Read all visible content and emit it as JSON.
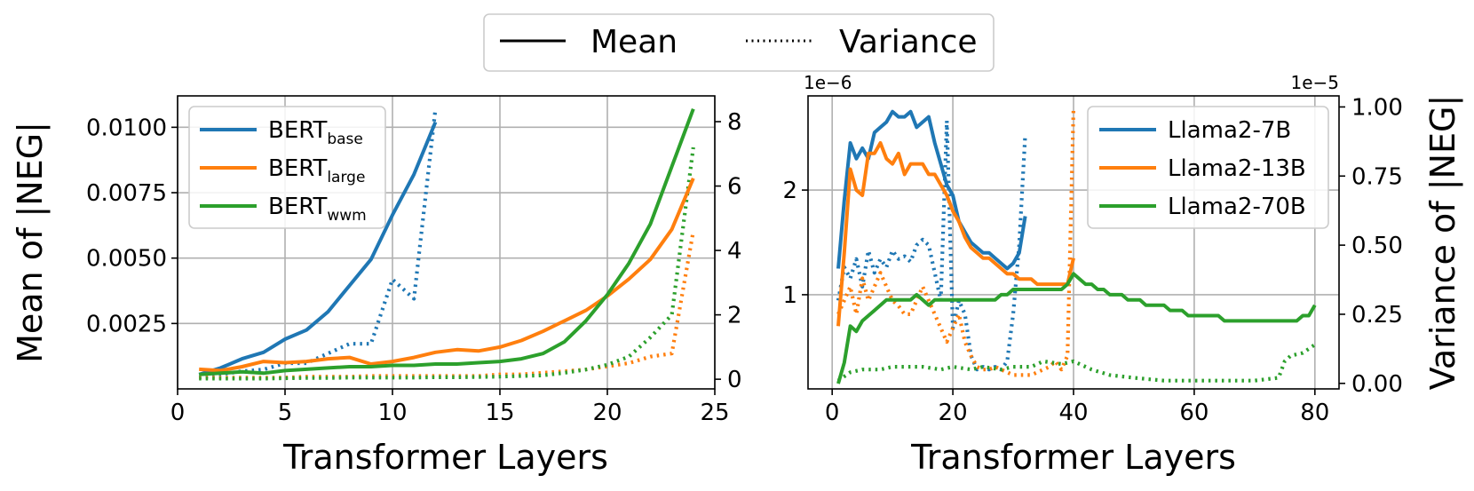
{
  "legend_top": {
    "mean_label": "Mean",
    "variance_label": "Variance"
  },
  "colors": {
    "blue": "#1f77b4",
    "orange": "#ff7f0e",
    "green": "#2ca02c"
  },
  "chart_data": [
    {
      "type": "line",
      "xlabel": "Transformer Layers",
      "ylabel_left": "Mean of |NEG|",
      "ylabel_right": "",
      "xlim": [
        0,
        25
      ],
      "ylim_left": [
        0,
        0.0112
      ],
      "ylim_right": [
        -0.3,
        8.8
      ],
      "x_ticks": [
        "0",
        "5",
        "10",
        "15",
        "20",
        "25"
      ],
      "x_tick_values": [
        0,
        5,
        10,
        15,
        20,
        25
      ],
      "y_left_ticks": [
        "0.0025",
        "0.0050",
        "0.0075",
        "0.0100"
      ],
      "y_left_tick_values": [
        0.0025,
        0.005,
        0.0075,
        0.01
      ],
      "y_right_ticks": [
        "0",
        "2",
        "4",
        "6",
        "8"
      ],
      "y_right_tick_values": [
        0,
        2,
        4,
        6,
        8
      ],
      "right_offset_text": "",
      "left_offset_text": "",
      "legend": {
        "placement": "top-left",
        "entries": [
          {
            "base": "BERT",
            "sub": "base",
            "color": "#1f77b4"
          },
          {
            "base": "BERT",
            "sub": "large",
            "color": "#ff7f0e"
          },
          {
            "base": "BERT",
            "sub": "wwm",
            "color": "#2ca02c"
          }
        ]
      },
      "series": [
        {
          "name": "BERT_base mean",
          "axis": "left",
          "style": "solid",
          "color": "#1f77b4",
          "x": [
            1,
            2,
            3,
            4,
            5,
            6,
            7,
            8,
            9,
            10,
            11,
            12
          ],
          "y": [
            0.00055,
            0.0008,
            0.00115,
            0.0014,
            0.0019,
            0.00225,
            0.00295,
            0.00395,
            0.00495,
            0.00665,
            0.0082,
            0.0102
          ]
        },
        {
          "name": "BERT_base variance",
          "axis": "right",
          "style": "dotted",
          "color": "#1f77b4",
          "x": [
            1,
            2,
            3,
            4,
            5,
            6,
            7,
            8,
            9,
            10,
            11,
            12
          ],
          "y": [
            0.05,
            0.15,
            0.25,
            0.3,
            0.5,
            0.5,
            0.8,
            1.1,
            1.1,
            3.1,
            2.5,
            8.4
          ]
        },
        {
          "name": "BERT_large mean",
          "axis": "left",
          "style": "solid",
          "color": "#ff7f0e",
          "x": [
            1,
            2,
            3,
            4,
            5,
            6,
            7,
            8,
            9,
            10,
            11,
            12,
            13,
            14,
            15,
            16,
            17,
            18,
            19,
            20,
            21,
            22,
            23,
            24
          ],
          "y": [
            0.00075,
            0.0007,
            0.00085,
            0.00105,
            0.001,
            0.00105,
            0.00115,
            0.0012,
            0.00095,
            0.00105,
            0.0012,
            0.0014,
            0.0015,
            0.00145,
            0.0016,
            0.00185,
            0.0022,
            0.0026,
            0.003,
            0.00355,
            0.0042,
            0.00495,
            0.0061,
            0.00805
          ]
        },
        {
          "name": "BERT_large variance",
          "axis": "right",
          "style": "dotted",
          "color": "#ff7f0e",
          "x": [
            1,
            2,
            3,
            4,
            5,
            6,
            7,
            8,
            9,
            10,
            11,
            12,
            13,
            14,
            15,
            16,
            17,
            18,
            19,
            20,
            21,
            22,
            23,
            24
          ],
          "y": [
            0.05,
            0.05,
            0.05,
            0.05,
            0.05,
            0.08,
            0.08,
            0.08,
            0.1,
            0.1,
            0.1,
            0.1,
            0.1,
            0.1,
            0.15,
            0.15,
            0.2,
            0.25,
            0.3,
            0.4,
            0.5,
            0.7,
            0.8,
            4.6
          ]
        },
        {
          "name": "BERT_wwm mean",
          "axis": "left",
          "style": "solid",
          "color": "#2ca02c",
          "x": [
            1,
            2,
            3,
            4,
            5,
            6,
            7,
            8,
            9,
            10,
            11,
            12,
            13,
            14,
            15,
            16,
            17,
            18,
            19,
            20,
            21,
            22,
            23,
            24
          ],
          "y": [
            0.00055,
            0.0006,
            0.00065,
            0.0006,
            0.0007,
            0.00075,
            0.0008,
            0.00085,
            0.00085,
            0.0009,
            0.0009,
            0.00095,
            0.00095,
            0.001,
            0.00105,
            0.00115,
            0.00135,
            0.0018,
            0.0026,
            0.0036,
            0.0048,
            0.0063,
            0.0085,
            0.0107
          ]
        },
        {
          "name": "BERT_wwm variance",
          "axis": "right",
          "style": "dotted",
          "color": "#2ca02c",
          "x": [
            1,
            2,
            3,
            4,
            5,
            6,
            7,
            8,
            9,
            10,
            11,
            12,
            13,
            14,
            15,
            16,
            17,
            18,
            19,
            20,
            21,
            22,
            23,
            24
          ],
          "y": [
            0.02,
            0.02,
            0.02,
            0.02,
            0.03,
            0.04,
            0.04,
            0.05,
            0.05,
            0.05,
            0.05,
            0.06,
            0.06,
            0.07,
            0.08,
            0.1,
            0.12,
            0.2,
            0.3,
            0.45,
            0.7,
            1.3,
            2.0,
            7.2
          ]
        }
      ]
    },
    {
      "type": "line",
      "xlabel": "Transformer Layers",
      "ylabel_left": "",
      "ylabel_right": "Variance of |NEG|",
      "xlim": [
        -4,
        84
      ],
      "ylim_left": [
        0.1,
        2.9
      ],
      "ylim_right": [
        -0.02,
        1.04
      ],
      "x_ticks": [
        "0",
        "20",
        "40",
        "60",
        "80"
      ],
      "x_tick_values": [
        0,
        20,
        40,
        60,
        80
      ],
      "y_left_ticks": [
        "1",
        "2"
      ],
      "y_left_tick_values": [
        1,
        2
      ],
      "y_right_ticks": [
        "0.00",
        "0.25",
        "0.50",
        "0.75",
        "1.00"
      ],
      "y_right_tick_values": [
        0,
        0.25,
        0.5,
        0.75,
        1.0
      ],
      "left_offset_text": "1e−6",
      "right_offset_text": "1e−5",
      "legend": {
        "placement": "top-right",
        "entries": [
          {
            "base": "Llama2-7B",
            "sub": "",
            "color": "#1f77b4"
          },
          {
            "base": "Llama2-13B",
            "sub": "",
            "color": "#ff7f0e"
          },
          {
            "base": "Llama2-70B",
            "sub": "",
            "color": "#2ca02c"
          }
        ]
      },
      "series": [
        {
          "name": "Llama2-7B mean",
          "axis": "left",
          "style": "solid",
          "color": "#1f77b4",
          "x": [
            1,
            2,
            3,
            4,
            5,
            6,
            7,
            8,
            9,
            10,
            11,
            12,
            13,
            14,
            15,
            16,
            17,
            18,
            19,
            20,
            21,
            22,
            23,
            24,
            25,
            26,
            27,
            28,
            29,
            30,
            31,
            32
          ],
          "y": [
            1.25,
            1.9,
            2.45,
            2.3,
            2.4,
            2.3,
            2.55,
            2.6,
            2.65,
            2.75,
            2.7,
            2.7,
            2.75,
            2.6,
            2.65,
            2.7,
            2.45,
            2.25,
            2.05,
            1.95,
            1.7,
            1.6,
            1.5,
            1.45,
            1.4,
            1.4,
            1.35,
            1.3,
            1.25,
            1.3,
            1.4,
            1.75
          ]
        },
        {
          "name": "Llama2-7B variance",
          "axis": "right",
          "style": "dotted",
          "color": "#1f77b4",
          "x": [
            1,
            2,
            3,
            4,
            5,
            6,
            7,
            8,
            9,
            10,
            11,
            12,
            13,
            14,
            15,
            16,
            17,
            18,
            19,
            20,
            21,
            22,
            23,
            24,
            25,
            26,
            27,
            28,
            29,
            30,
            31,
            32
          ],
          "y": [
            0.3,
            0.42,
            0.38,
            0.45,
            0.35,
            0.48,
            0.4,
            0.45,
            0.42,
            0.48,
            0.45,
            0.46,
            0.44,
            0.5,
            0.52,
            0.5,
            0.4,
            0.3,
            0.95,
            0.2,
            0.3,
            0.25,
            0.1,
            0.05,
            0.06,
            0.05,
            0.06,
            0.05,
            0.08,
            0.25,
            0.5,
            0.9
          ]
        },
        {
          "name": "Llama2-13B mean",
          "axis": "left",
          "style": "solid",
          "color": "#ff7f0e",
          "x": [
            1,
            2,
            3,
            4,
            5,
            6,
            7,
            8,
            9,
            10,
            11,
            12,
            13,
            14,
            15,
            16,
            17,
            18,
            19,
            20,
            21,
            22,
            23,
            24,
            25,
            26,
            27,
            28,
            29,
            30,
            31,
            32,
            33,
            34,
            35,
            36,
            37,
            38,
            39,
            40
          ],
          "y": [
            0.7,
            1.4,
            2.2,
            2.0,
            1.95,
            2.35,
            2.35,
            2.45,
            2.3,
            2.25,
            2.35,
            2.15,
            2.25,
            2.25,
            2.25,
            2.15,
            2.15,
            2.05,
            1.95,
            1.8,
            1.7,
            1.55,
            1.45,
            1.4,
            1.35,
            1.35,
            1.3,
            1.25,
            1.2,
            1.2,
            1.15,
            1.15,
            1.15,
            1.1,
            1.1,
            1.1,
            1.1,
            1.1,
            1.1,
            1.35
          ]
        },
        {
          "name": "Llama2-13B variance",
          "axis": "right",
          "style": "dotted",
          "color": "#ff7f0e",
          "x": [
            1,
            2,
            3,
            4,
            5,
            6,
            7,
            8,
            9,
            10,
            11,
            12,
            13,
            14,
            15,
            16,
            17,
            18,
            19,
            20,
            21,
            22,
            23,
            24,
            25,
            26,
            27,
            28,
            29,
            30,
            31,
            32,
            33,
            34,
            35,
            36,
            37,
            38,
            39,
            40
          ],
          "y": [
            0.25,
            0.3,
            0.35,
            0.25,
            0.38,
            0.3,
            0.35,
            0.4,
            0.35,
            0.3,
            0.28,
            0.25,
            0.25,
            0.3,
            0.35,
            0.3,
            0.25,
            0.2,
            0.15,
            0.2,
            0.25,
            0.15,
            0.1,
            0.06,
            0.05,
            0.05,
            0.06,
            0.05,
            0.04,
            0.03,
            0.03,
            0.03,
            0.03,
            0.04,
            0.05,
            0.06,
            0.08,
            0.05,
            0.1,
            1.0
          ]
        },
        {
          "name": "Llama2-70B mean",
          "axis": "left",
          "style": "solid",
          "color": "#2ca02c",
          "x": [
            1,
            2,
            3,
            4,
            5,
            6,
            7,
            8,
            9,
            10,
            11,
            12,
            13,
            14,
            15,
            16,
            17,
            18,
            19,
            20,
            21,
            22,
            23,
            24,
            25,
            26,
            27,
            28,
            29,
            30,
            31,
            32,
            33,
            34,
            35,
            36,
            37,
            38,
            39,
            40,
            41,
            42,
            43,
            44,
            45,
            46,
            47,
            48,
            49,
            50,
            51,
            52,
            53,
            54,
            55,
            56,
            57,
            58,
            59,
            60,
            61,
            62,
            63,
            64,
            65,
            66,
            67,
            68,
            69,
            70,
            71,
            72,
            73,
            74,
            75,
            76,
            77,
            78,
            79,
            80
          ],
          "y": [
            0.15,
            0.35,
            0.7,
            0.65,
            0.75,
            0.8,
            0.85,
            0.9,
            0.95,
            0.95,
            0.95,
            0.95,
            0.95,
            1.0,
            0.95,
            0.9,
            0.95,
            0.95,
            0.95,
            0.95,
            0.95,
            0.95,
            0.95,
            0.95,
            0.95,
            0.95,
            0.95,
            1.0,
            1.0,
            1.05,
            1.05,
            1.05,
            1.05,
            1.05,
            1.05,
            1.05,
            1.05,
            1.05,
            1.1,
            1.2,
            1.15,
            1.1,
            1.1,
            1.05,
            1.05,
            1.0,
            1.0,
            1.0,
            0.95,
            0.95,
            0.95,
            0.9,
            0.9,
            0.9,
            0.9,
            0.85,
            0.85,
            0.85,
            0.8,
            0.8,
            0.8,
            0.8,
            0.8,
            0.8,
            0.75,
            0.75,
            0.75,
            0.75,
            0.75,
            0.75,
            0.75,
            0.75,
            0.75,
            0.75,
            0.75,
            0.75,
            0.75,
            0.8,
            0.8,
            0.9
          ]
        },
        {
          "name": "Llama2-70B variance",
          "axis": "right",
          "style": "dotted",
          "color": "#2ca02c",
          "x": [
            1,
            3,
            5,
            8,
            10,
            13,
            15,
            18,
            20,
            23,
            25,
            28,
            30,
            33,
            35,
            38,
            40,
            43,
            46,
            50,
            55,
            60,
            65,
            70,
            74,
            75,
            76,
            78,
            80
          ],
          "y": [
            0.01,
            0.04,
            0.05,
            0.05,
            0.06,
            0.06,
            0.06,
            0.05,
            0.06,
            0.05,
            0.06,
            0.05,
            0.06,
            0.06,
            0.08,
            0.07,
            0.08,
            0.05,
            0.03,
            0.02,
            0.01,
            0.01,
            0.01,
            0.01,
            0.02,
            0.08,
            0.1,
            0.11,
            0.14
          ]
        }
      ]
    }
  ]
}
